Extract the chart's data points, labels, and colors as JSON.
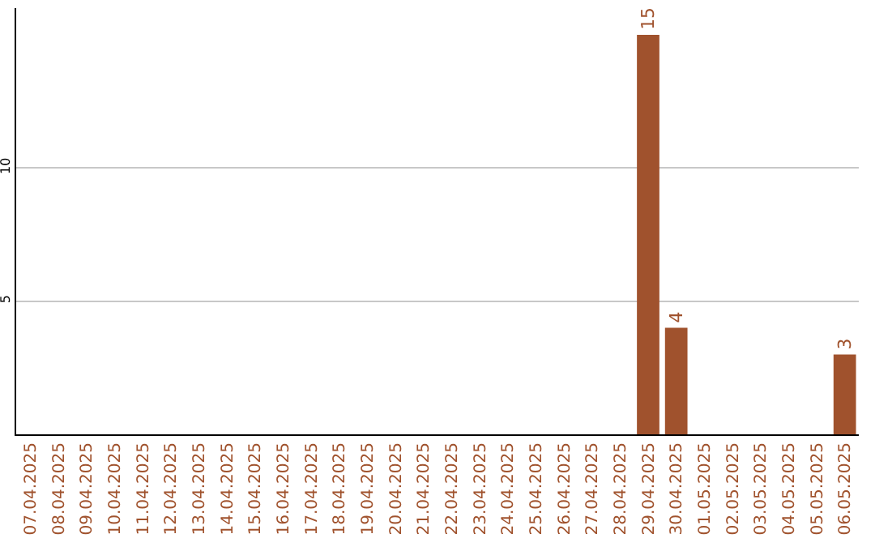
{
  "chart_data": {
    "type": "bar",
    "categories": [
      "07.04.2025",
      "08.04.2025",
      "09.04.2025",
      "10.04.2025",
      "11.04.2025",
      "12.04.2025",
      "13.04.2025",
      "14.04.2025",
      "15.04.2025",
      "16.04.2025",
      "17.04.2025",
      "18.04.2025",
      "19.04.2025",
      "20.04.2025",
      "21.04.2025",
      "22.04.2025",
      "23.04.2025",
      "24.04.2025",
      "25.04.2025",
      "26.04.2025",
      "27.04.2025",
      "28.04.2025",
      "29.04.2025",
      "30.04.2025",
      "01.05.2025",
      "02.05.2025",
      "03.05.2025",
      "04.05.2025",
      "05.05.2025",
      "06.05.2025"
    ],
    "values": [
      0,
      0,
      0,
      0,
      0,
      0,
      0,
      0,
      0,
      0,
      0,
      0,
      0,
      0,
      0,
      0,
      0,
      0,
      0,
      0,
      0,
      0,
      15,
      4,
      0,
      0,
      0,
      0,
      0,
      3
    ],
    "value_labels": [
      null,
      null,
      null,
      null,
      null,
      null,
      null,
      null,
      null,
      null,
      null,
      null,
      null,
      null,
      null,
      null,
      null,
      null,
      null,
      null,
      null,
      null,
      "15",
      "4",
      null,
      null,
      null,
      null,
      null,
      "3"
    ],
    "color": "#a0522d",
    "ylim": [
      0,
      16
    ],
    "yticks": [
      5,
      10
    ],
    "grid": "y"
  }
}
